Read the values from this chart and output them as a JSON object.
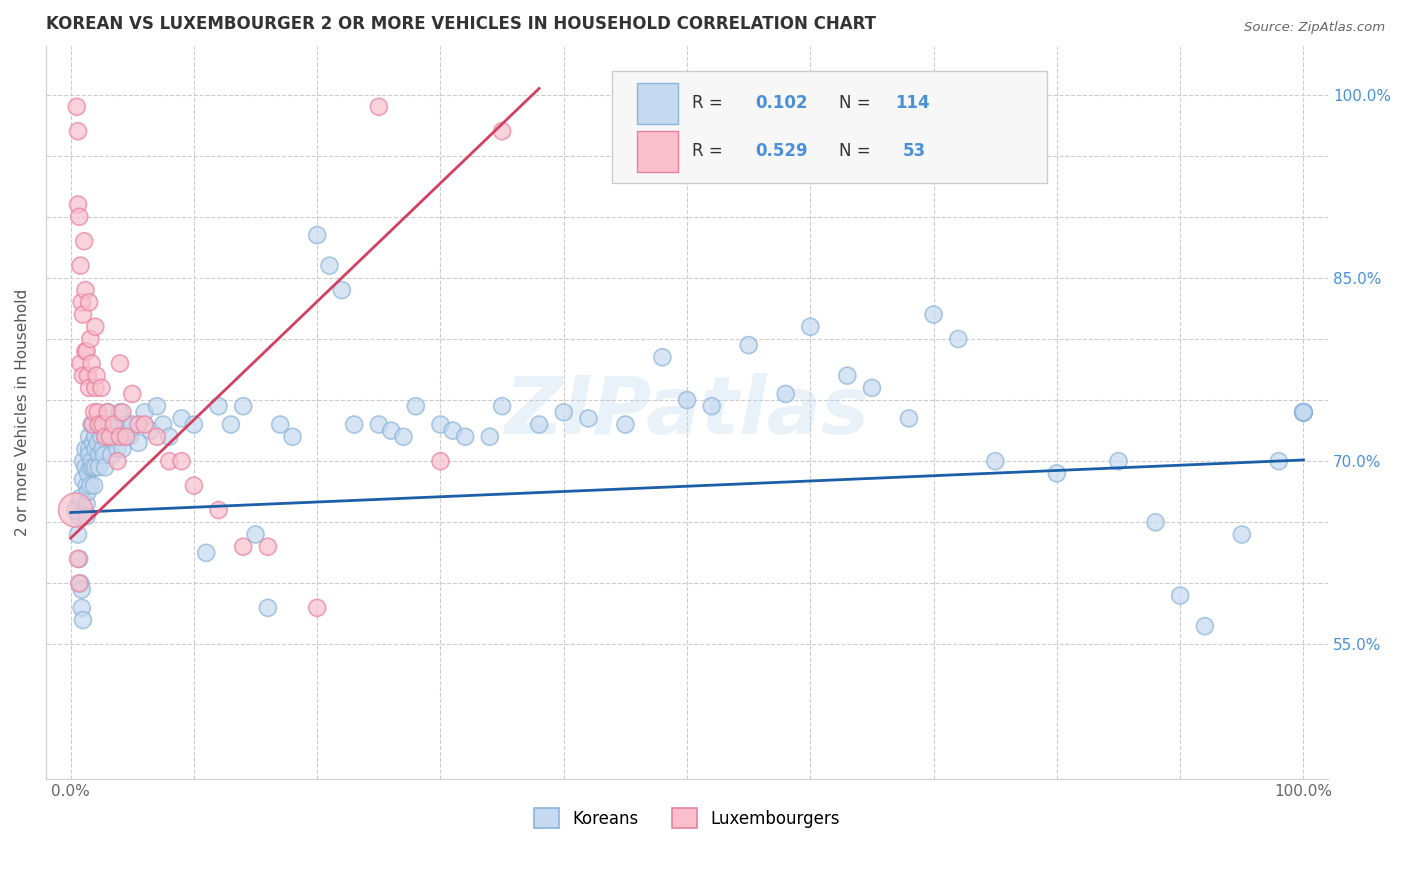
{
  "title": "KOREAN VS LUXEMBOURGER 2 OR MORE VEHICLES IN HOUSEHOLD CORRELATION CHART",
  "source": "Source: ZipAtlas.com",
  "ylabel": "2 or more Vehicles in Household",
  "watermark": "ZIPatlas",
  "korean_R": 0.102,
  "korean_N": 114,
  "luxembourger_R": 0.529,
  "luxembourger_N": 53,
  "xlim": [
    -0.02,
    1.02
  ],
  "ylim": [
    0.44,
    1.04
  ],
  "xtick_positions": [
    0.0,
    0.1,
    0.2,
    0.3,
    0.4,
    0.5,
    0.6,
    0.7,
    0.8,
    0.9,
    1.0
  ],
  "xtick_labels": [
    "0.0%",
    "",
    "",
    "",
    "",
    "",
    "",
    "",
    "",
    "",
    "100.0%"
  ],
  "ytick_positions": [
    0.55,
    0.6,
    0.65,
    0.7,
    0.75,
    0.8,
    0.85,
    0.9,
    0.95,
    1.0
  ],
  "right_ytick_labels": [
    "55.0%",
    "",
    "",
    "70.0%",
    "",
    "",
    "85.0%",
    "",
    "",
    "100.0%"
  ],
  "korean_fill_color": "#c5d9f0",
  "korean_edge_color": "#8ab4d8",
  "luxembourger_fill_color": "#f9c0cc",
  "luxembourger_edge_color": "#e880a0",
  "korean_line_color": "#1a5fa8",
  "luxembourger_line_color": "#d44060",
  "right_axis_color": "#4a90d9",
  "title_color": "#333333",
  "grid_color": "#cccccc",
  "korean_line": {
    "x0": 0.0,
    "y0": 0.658,
    "x1": 1.0,
    "y1": 0.701
  },
  "luxembourger_line": {
    "x0": 0.0,
    "y0": 0.637,
    "x1": 0.38,
    "y1": 1.005
  },
  "korean_scatter_x": [
    0.005,
    0.006,
    0.007,
    0.007,
    0.008,
    0.008,
    0.009,
    0.009,
    0.01,
    0.01,
    0.01,
    0.012,
    0.012,
    0.013,
    0.013,
    0.013,
    0.014,
    0.014,
    0.015,
    0.015,
    0.015,
    0.016,
    0.016,
    0.017,
    0.017,
    0.018,
    0.018,
    0.019,
    0.02,
    0.02,
    0.02,
    0.022,
    0.022,
    0.023,
    0.023,
    0.025,
    0.025,
    0.026,
    0.027,
    0.028,
    0.03,
    0.03,
    0.031,
    0.033,
    0.035,
    0.036,
    0.038,
    0.04,
    0.04,
    0.042,
    0.045,
    0.048,
    0.05,
    0.055,
    0.06,
    0.065,
    0.07,
    0.075,
    0.08,
    0.09,
    0.1,
    0.11,
    0.12,
    0.13,
    0.14,
    0.15,
    0.16,
    0.17,
    0.18,
    0.2,
    0.21,
    0.22,
    0.23,
    0.25,
    0.26,
    0.27,
    0.28,
    0.3,
    0.31,
    0.32,
    0.34,
    0.35,
    0.38,
    0.4,
    0.42,
    0.45,
    0.48,
    0.5,
    0.52,
    0.55,
    0.58,
    0.6,
    0.63,
    0.65,
    0.68,
    0.7,
    0.72,
    0.75,
    0.8,
    0.85,
    0.88,
    0.9,
    0.92,
    0.95,
    0.98,
    1.0,
    1.0,
    1.0,
    1.0,
    1.0,
    1.0,
    1.0,
    1.0,
    1.0
  ],
  "korean_scatter_y": [
    0.66,
    0.64,
    0.655,
    0.62,
    0.6,
    0.67,
    0.595,
    0.58,
    0.7,
    0.685,
    0.57,
    0.71,
    0.695,
    0.68,
    0.665,
    0.655,
    0.69,
    0.675,
    0.72,
    0.71,
    0.705,
    0.695,
    0.68,
    0.73,
    0.7,
    0.715,
    0.695,
    0.68,
    0.72,
    0.71,
    0.695,
    0.73,
    0.715,
    0.705,
    0.695,
    0.73,
    0.72,
    0.71,
    0.705,
    0.695,
    0.74,
    0.72,
    0.73,
    0.705,
    0.73,
    0.72,
    0.71,
    0.74,
    0.72,
    0.71,
    0.73,
    0.72,
    0.73,
    0.715,
    0.74,
    0.725,
    0.745,
    0.73,
    0.72,
    0.735,
    0.73,
    0.625,
    0.745,
    0.73,
    0.745,
    0.64,
    0.58,
    0.73,
    0.72,
    0.885,
    0.86,
    0.84,
    0.73,
    0.73,
    0.725,
    0.72,
    0.745,
    0.73,
    0.725,
    0.72,
    0.72,
    0.745,
    0.73,
    0.74,
    0.735,
    0.73,
    0.785,
    0.75,
    0.745,
    0.795,
    0.755,
    0.81,
    0.77,
    0.76,
    0.735,
    0.82,
    0.8,
    0.7,
    0.69,
    0.7,
    0.65,
    0.59,
    0.565,
    0.64,
    0.7,
    0.74,
    0.74,
    0.74,
    0.74,
    0.74,
    0.74,
    0.74,
    0.74,
    0.74
  ],
  "korean_scatter_sizes": [
    200,
    150,
    150,
    150,
    150,
    150,
    150,
    150,
    150,
    150,
    150,
    150,
    150,
    150,
    150,
    150,
    150,
    150,
    150,
    150,
    150,
    150,
    150,
    150,
    150,
    150,
    150,
    150,
    150,
    150,
    150,
    150,
    150,
    150,
    150,
    150,
    150,
    150,
    150,
    150,
    150,
    150,
    150,
    150,
    150,
    150,
    150,
    150,
    150,
    150,
    150,
    150,
    150,
    150,
    150,
    150,
    150,
    150,
    150,
    150,
    150,
    150,
    150,
    150,
    150,
    150,
    150,
    150,
    150,
    150,
    150,
    150,
    150,
    150,
    150,
    150,
    150,
    150,
    150,
    150,
    150,
    150,
    150,
    150,
    150,
    150,
    150,
    150,
    150,
    150,
    150,
    150,
    150,
    150,
    150,
    150,
    150,
    150,
    150,
    150,
    150,
    150,
    150,
    150,
    150,
    150,
    150,
    150,
    150,
    150,
    150,
    150,
    150,
    150
  ],
  "lux_scatter_x": [
    0.004,
    0.005,
    0.006,
    0.006,
    0.006,
    0.007,
    0.007,
    0.008,
    0.008,
    0.009,
    0.01,
    0.01,
    0.011,
    0.012,
    0.012,
    0.013,
    0.014,
    0.015,
    0.015,
    0.016,
    0.017,
    0.018,
    0.019,
    0.02,
    0.02,
    0.021,
    0.022,
    0.023,
    0.025,
    0.026,
    0.028,
    0.03,
    0.032,
    0.035,
    0.038,
    0.04,
    0.04,
    0.042,
    0.045,
    0.05,
    0.055,
    0.06,
    0.07,
    0.08,
    0.09,
    0.1,
    0.12,
    0.14,
    0.16,
    0.2,
    0.25,
    0.3,
    0.35
  ],
  "lux_scatter_y": [
    0.66,
    0.99,
    0.97,
    0.91,
    0.62,
    0.9,
    0.6,
    0.86,
    0.78,
    0.83,
    0.82,
    0.77,
    0.88,
    0.84,
    0.79,
    0.79,
    0.77,
    0.83,
    0.76,
    0.8,
    0.78,
    0.73,
    0.74,
    0.81,
    0.76,
    0.77,
    0.74,
    0.73,
    0.76,
    0.73,
    0.72,
    0.74,
    0.72,
    0.73,
    0.7,
    0.78,
    0.72,
    0.74,
    0.72,
    0.755,
    0.73,
    0.73,
    0.72,
    0.7,
    0.7,
    0.68,
    0.66,
    0.63,
    0.63,
    0.58,
    0.99,
    0.7,
    0.97
  ],
  "lux_scatter_sizes": [
    600,
    150,
    150,
    150,
    150,
    150,
    150,
    150,
    150,
    150,
    150,
    150,
    150,
    150,
    150,
    150,
    150,
    150,
    150,
    150,
    150,
    150,
    150,
    150,
    150,
    150,
    150,
    150,
    150,
    150,
    150,
    150,
    150,
    150,
    150,
    150,
    150,
    150,
    150,
    150,
    150,
    150,
    150,
    150,
    150,
    150,
    150,
    150,
    150,
    150,
    150,
    150,
    150
  ]
}
